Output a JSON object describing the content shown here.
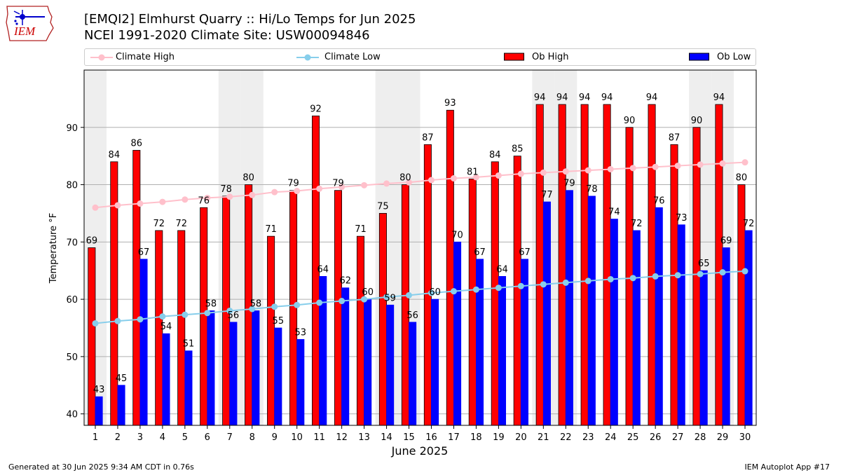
{
  "header": {
    "title_line1": "[EMQI2] Elmhurst Quarry :: Hi/Lo Temps for Jun 2025",
    "title_line2": "NCEI 1991-2020 Climate Site: USW00094846"
  },
  "logo": {
    "text": "IEM",
    "icon": "iowa-state-outline-weather-station-icon"
  },
  "footer": {
    "generated": "Generated at 30 Jun 2025 9:34 AM CDT in 0.76s",
    "app": "IEM Autoplot App #17"
  },
  "colors": {
    "ob_high": "#ff0000",
    "ob_low": "#0000ff",
    "climate_high": "#ffc0cb",
    "climate_low": "#87ceeb",
    "weekend_shade": "#eeeeee",
    "grid": "#b0b0b0"
  },
  "chart_data": {
    "type": "bar",
    "xlabel": "June 2025",
    "ylabel": "Temperature °F",
    "ylim": [
      38,
      100
    ],
    "yticks": [
      40,
      50,
      60,
      70,
      80,
      90
    ],
    "grid": "horizontal",
    "legend_position": "top",
    "weekend_days": [
      1,
      7,
      8,
      14,
      15,
      21,
      22,
      28,
      29
    ],
    "categories": [
      "1",
      "2",
      "3",
      "4",
      "5",
      "6",
      "7",
      "8",
      "9",
      "10",
      "11",
      "12",
      "13",
      "14",
      "15",
      "16",
      "17",
      "18",
      "19",
      "20",
      "21",
      "22",
      "23",
      "24",
      "25",
      "26",
      "27",
      "28",
      "29",
      "30"
    ],
    "series": [
      {
        "name": "Ob High",
        "kind": "bar",
        "values": [
          69,
          84,
          86,
          72,
          72,
          76,
          78,
          80,
          71,
          79,
          92,
          79,
          71,
          75,
          80,
          87,
          93,
          81,
          84,
          85,
          94,
          94,
          94,
          94,
          90,
          94,
          87,
          90,
          94,
          80
        ]
      },
      {
        "name": "Ob Low",
        "kind": "bar",
        "values": [
          43,
          45,
          67,
          54,
          51,
          58,
          56,
          58,
          55,
          53,
          64,
          62,
          60,
          59,
          56,
          60,
          70,
          67,
          64,
          67,
          77,
          79,
          78,
          74,
          72,
          76,
          73,
          65,
          69,
          72
        ]
      },
      {
        "name": "Climate High",
        "kind": "line",
        "values": [
          76.0,
          76.4,
          76.7,
          77.0,
          77.4,
          77.7,
          77.9,
          78.2,
          78.7,
          78.9,
          79.3,
          79.6,
          79.9,
          80.2,
          80.4,
          80.8,
          81.1,
          81.3,
          81.6,
          81.9,
          82.1,
          82.3,
          82.5,
          82.7,
          82.9,
          83.1,
          83.3,
          83.5,
          83.7,
          83.9
        ]
      },
      {
        "name": "Climate Low",
        "kind": "line",
        "values": [
          55.8,
          56.2,
          56.5,
          57.0,
          57.3,
          57.6,
          58.0,
          58.3,
          58.7,
          59.0,
          59.4,
          59.7,
          60.0,
          60.4,
          60.7,
          61.1,
          61.4,
          61.7,
          62.0,
          62.3,
          62.6,
          62.9,
          63.2,
          63.5,
          63.7,
          64.0,
          64.2,
          64.4,
          64.7,
          64.9
        ]
      }
    ],
    "bar_labels": {
      "high": [
        "69",
        "84",
        "86",
        "72",
        "72",
        "76",
        "78",
        "80",
        "71",
        "79",
        "92",
        "79",
        "71",
        "75",
        "80",
        "87",
        "93",
        "81",
        "84",
        "85",
        "94",
        "94",
        "94",
        "94",
        "90",
        "94",
        "87",
        "90",
        "94",
        "80"
      ],
      "low": [
        "43",
        "45",
        "67",
        "54",
        "51",
        "58",
        "56",
        "58",
        "55",
        "53",
        "64",
        "62",
        "60",
        "59",
        "56",
        "60",
        "70",
        "67",
        "64",
        "67",
        "77",
        "79",
        "78",
        "74",
        "72",
        "76",
        "73",
        "65",
        "69",
        "72"
      ]
    }
  }
}
